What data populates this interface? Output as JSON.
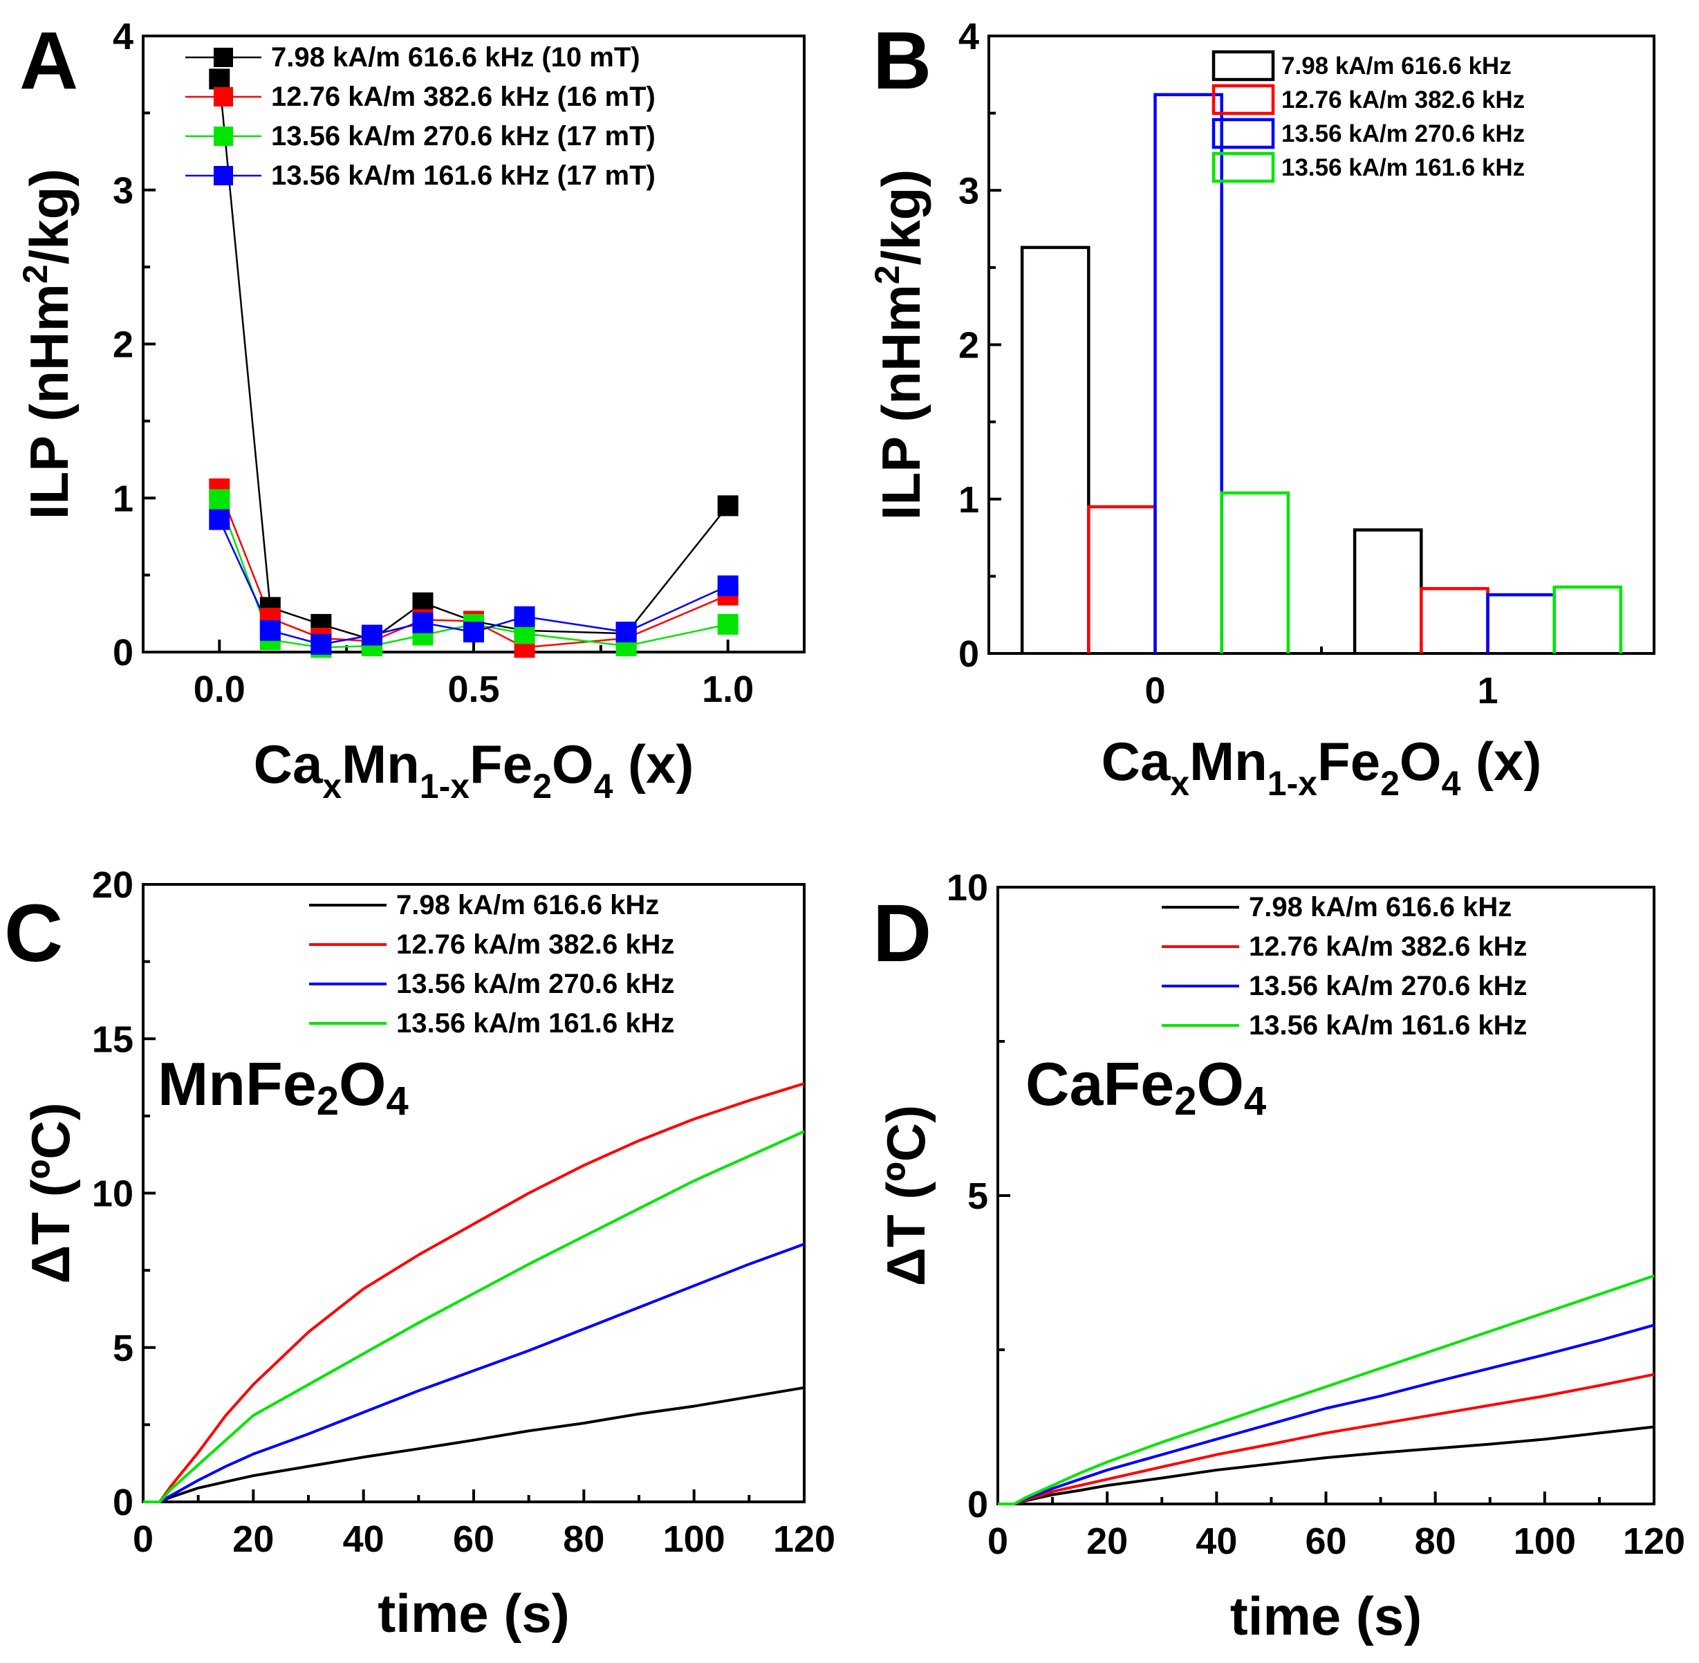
{
  "colors": {
    "black": "#000000",
    "red": "#ff0000",
    "green": "#00e600",
    "blue": "#0000ff"
  },
  "chart_data": [
    {
      "id": "A",
      "type": "line",
      "panel_label": "A",
      "xlabel": {
        "base": "Ca",
        "s1": "x",
        "mid": "Mn",
        "s2": "1-x",
        "mid2": "Fe",
        "s3": "2",
        "mid3": "O",
        "s4": "4",
        "tail": " (x)"
      },
      "ylabel": {
        "pre": "ILP (nHm",
        "sup": "2",
        "post": "/kg)"
      },
      "xlim": [
        -0.15,
        1.15
      ],
      "ylim": [
        0,
        4
      ],
      "xticks": [
        "0.0",
        "0.5",
        "1.0"
      ],
      "xtick_values": [
        0,
        0.5,
        1.0
      ],
      "yticks": [
        "0",
        "1",
        "2",
        "3",
        "4"
      ],
      "x": [
        0,
        0.1,
        0.2,
        0.3,
        0.4,
        0.5,
        0.6,
        0.8,
        1.0
      ],
      "series": [
        {
          "name": "7.98 kA/m 616.6 kHz (10 mT)",
          "color": "#000000",
          "values": [
            3.72,
            0.29,
            0.18,
            0.08,
            0.32,
            0.2,
            0.14,
            0.12,
            0.95
          ]
        },
        {
          "name": "12.76 kA/m 382.6 kHz (16 mT)",
          "color": "#ff0000",
          "values": [
            1.06,
            0.22,
            0.09,
            0.07,
            0.21,
            0.2,
            0.03,
            0.09,
            0.37
          ]
        },
        {
          "name": "13.56 kA/m 270.6 kHz (17 mT)",
          "color": "#00e600",
          "values": [
            0.99,
            0.08,
            0.03,
            0.04,
            0.11,
            0.18,
            0.12,
            0.04,
            0.18
          ]
        },
        {
          "name": "13.56 kA/m 161.6 kHz (17 mT)",
          "color": "#0000ff",
          "values": [
            0.86,
            0.14,
            0.05,
            0.11,
            0.19,
            0.13,
            0.23,
            0.13,
            0.43
          ]
        }
      ]
    },
    {
      "id": "B",
      "type": "bar",
      "panel_label": "B",
      "xlabel": {
        "base": "Ca",
        "s1": "x",
        "mid": "Mn",
        "s2": "1-x",
        "mid2": "Fe",
        "s3": "2",
        "mid3": "O",
        "s4": "4",
        "tail": " (x)"
      },
      "ylabel": {
        "pre": "ILP (nHm",
        "sup": "2",
        "post": "/kg)"
      },
      "xlim": [
        -0.5,
        1.5
      ],
      "ylim": [
        0,
        4
      ],
      "categories": [
        "0",
        "1"
      ],
      "category_values": [
        0,
        1
      ],
      "bar_width": 0.2,
      "yticks": [
        "0",
        "1",
        "2",
        "3",
        "4"
      ],
      "series": [
        {
          "name": "7.98 kA/m 616.6 kHz",
          "color": "#000000",
          "values": [
            2.63,
            0.8
          ]
        },
        {
          "name": "12.76 kA/m 382.6 kHz",
          "color": "#ff0000",
          "values": [
            0.95,
            0.42
          ]
        },
        {
          "name": "13.56 kA/m 270.6 kHz",
          "color": "#0000ff",
          "values": [
            3.62,
            0.38
          ]
        },
        {
          "name": "13.56 kA/m 161.6 kHz",
          "color": "#00e600",
          "values": [
            1.04,
            0.43
          ]
        }
      ]
    },
    {
      "id": "C",
      "type": "line",
      "panel_label": "C",
      "annotation": {
        "base": "MnFe",
        "s1": "2",
        "mid": "O",
        "s2": "4"
      },
      "xlabel": "time (s)",
      "ylabel": "ΔT (ºC)",
      "xlim": [
        0,
        120
      ],
      "ylim": [
        0,
        20
      ],
      "xticks": [
        "0",
        "20",
        "40",
        "60",
        "80",
        "100",
        "120"
      ],
      "yticks": [
        "0",
        "5",
        "10",
        "15",
        "20"
      ],
      "x": [
        0,
        3,
        5,
        10,
        15,
        20,
        30,
        40,
        50,
        60,
        70,
        80,
        90,
        100,
        110,
        120
      ],
      "series": [
        {
          "name": "7.98 kA/m 616.6 kHz",
          "color": "#000000",
          "values": [
            0,
            0,
            0.15,
            0.45,
            0.65,
            0.85,
            1.15,
            1.45,
            1.72,
            2.0,
            2.3,
            2.55,
            2.85,
            3.1,
            3.4,
            3.7
          ]
        },
        {
          "name": "12.76 kA/m 382.6 kHz",
          "color": "#ff0000",
          "values": [
            0,
            0,
            0.5,
            1.6,
            2.8,
            3.8,
            5.5,
            6.9,
            8.0,
            9.0,
            10.0,
            10.9,
            11.7,
            12.4,
            13.0,
            13.55
          ]
        },
        {
          "name": "13.56 kA/m 270.6 kHz",
          "color": "#0000ff",
          "values": [
            0,
            0,
            0.2,
            0.7,
            1.15,
            1.55,
            2.2,
            2.9,
            3.6,
            4.25,
            4.9,
            5.6,
            6.3,
            7.0,
            7.7,
            8.35
          ]
        },
        {
          "name": "13.56 kA/m 161.6 kHz",
          "color": "#00e600",
          "values": [
            0,
            0,
            0.4,
            1.2,
            2.0,
            2.8,
            3.8,
            4.8,
            5.8,
            6.75,
            7.7,
            8.6,
            9.5,
            10.4,
            11.2,
            12.0
          ]
        }
      ]
    },
    {
      "id": "D",
      "type": "line",
      "panel_label": "D",
      "annotation": {
        "base": "CaFe",
        "s1": "2",
        "mid": "O",
        "s2": "4"
      },
      "xlabel": "time (s)",
      "ylabel": "ΔT (ºC)",
      "xlim": [
        0,
        120
      ],
      "ylim": [
        0,
        10
      ],
      "xticks": [
        "0",
        "20",
        "40",
        "60",
        "80",
        "100",
        "120"
      ],
      "yticks": [
        "0",
        "5",
        "10"
      ],
      "x": [
        0,
        3,
        5,
        10,
        15,
        20,
        30,
        40,
        50,
        60,
        70,
        80,
        90,
        100,
        110,
        120
      ],
      "series": [
        {
          "name": "7.98 kA/m 616.6 kHz",
          "color": "#000000",
          "values": [
            0,
            0,
            0.05,
            0.15,
            0.22,
            0.3,
            0.42,
            0.55,
            0.65,
            0.75,
            0.83,
            0.9,
            0.97,
            1.05,
            1.15,
            1.25
          ]
        },
        {
          "name": "12.76 kA/m 382.6 kHz",
          "color": "#ff0000",
          "values": [
            0,
            0,
            0.06,
            0.2,
            0.3,
            0.4,
            0.6,
            0.8,
            0.97,
            1.15,
            1.3,
            1.45,
            1.6,
            1.75,
            1.92,
            2.1
          ]
        },
        {
          "name": "13.56 kA/m 270.6 kHz",
          "color": "#0000ff",
          "values": [
            0,
            0,
            0.08,
            0.25,
            0.4,
            0.55,
            0.8,
            1.05,
            1.3,
            1.55,
            1.75,
            1.98,
            2.2,
            2.42,
            2.65,
            2.9
          ]
        },
        {
          "name": "13.56 kA/m 161.6 kHz",
          "color": "#00e600",
          "values": [
            0,
            0,
            0.1,
            0.3,
            0.5,
            0.68,
            1.0,
            1.3,
            1.6,
            1.9,
            2.2,
            2.5,
            2.8,
            3.1,
            3.4,
            3.7
          ]
        }
      ]
    }
  ]
}
